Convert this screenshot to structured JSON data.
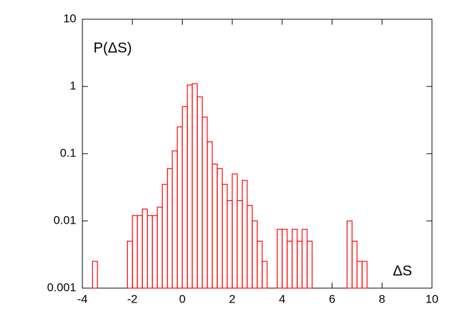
{
  "chart_data": {
    "type": "histogram",
    "annotation": "P(ΔS)",
    "x_label": "ΔS",
    "bins": [
      -3.6,
      -3.4,
      -3.2,
      -3.0,
      -2.8,
      -2.6,
      -2.4,
      -2.2,
      -2.0,
      -1.8,
      -1.6,
      -1.4,
      -1.2,
      -1.0,
      -0.8,
      -0.6,
      -0.4,
      -0.2,
      0.0,
      0.2,
      0.4,
      0.6,
      0.8,
      1.0,
      1.2,
      1.4,
      1.6,
      1.8,
      2.0,
      2.2,
      2.4,
      2.6,
      2.8,
      3.0,
      3.2,
      3.4,
      3.6,
      3.8,
      4.0,
      4.2,
      4.4,
      4.6,
      4.8,
      5.0,
      5.2,
      5.4,
      5.6,
      5.8,
      6.0,
      6.2,
      6.4,
      6.6,
      6.8,
      7.0,
      7.2,
      7.4
    ],
    "values": [
      0.0025,
      0,
      0,
      0,
      0,
      0,
      0,
      0.005,
      0.012,
      0.012,
      0.015,
      0.012,
      0.012,
      0.016,
      0.035,
      0.06,
      0.11,
      0.25,
      0.5,
      1.05,
      1.1,
      0.7,
      0.35,
      0.15,
      0.07,
      0.06,
      0.035,
      0.02,
      0.05,
      0.02,
      0.04,
      0.017,
      0.01,
      0.005,
      0.0025,
      0,
      0,
      0.0075,
      0.0075,
      0.005,
      0.0075,
      0.005,
      0.0075,
      0.005,
      0,
      0,
      0,
      0,
      0,
      0,
      0,
      0.01,
      0.005,
      0.0025,
      0.0025
    ],
    "color": "#ff0000",
    "xlim": [
      -4,
      10
    ],
    "xticks": [
      -4,
      -2,
      0,
      2,
      4,
      6,
      8,
      10
    ],
    "ylim": [
      0.001,
      10
    ],
    "yticks": [
      0.001,
      0.01,
      0.1,
      1,
      10
    ],
    "log_y": true,
    "grid": false
  }
}
